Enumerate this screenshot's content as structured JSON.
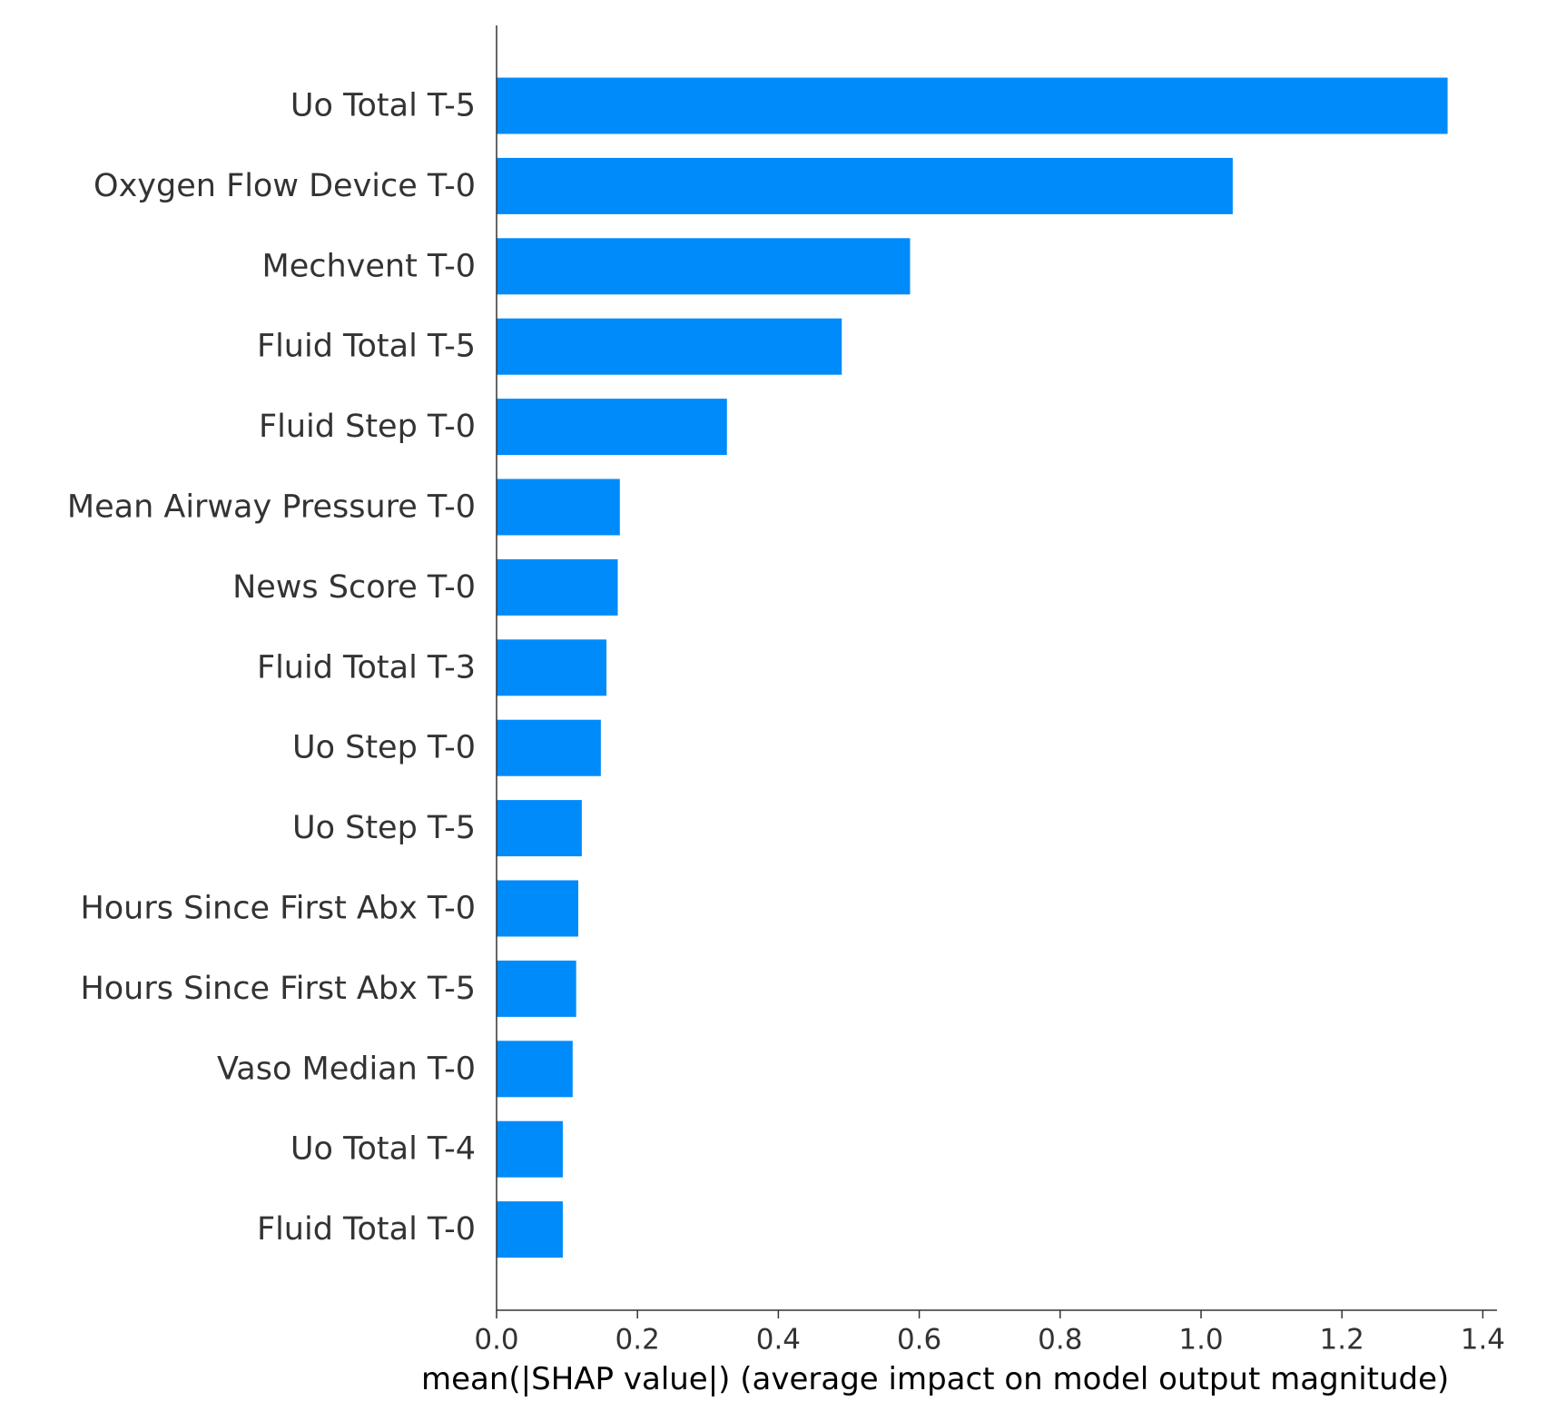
{
  "chart_data": {
    "type": "bar",
    "orientation": "horizontal",
    "title": "",
    "xlabel": "mean(|SHAP value|) (average impact on model output magnitude)",
    "ylabel": "",
    "xlim": [
      0,
      1.42
    ],
    "xticks": [
      0.0,
      0.2,
      0.4,
      0.6,
      0.8,
      1.0,
      1.2,
      1.4
    ],
    "xtick_labels": [
      "0.0",
      "0.2",
      "0.4",
      "0.6",
      "0.8",
      "1.0",
      "1.2",
      "1.4"
    ],
    "grid": false,
    "bar_color": "#008bfb",
    "categories": [
      "Uo Total T-5",
      "Oxygen Flow Device T-0",
      "Mechvent T-0",
      "Fluid Total T-5",
      "Fluid Step T-0",
      "Mean Airway Pressure T-0",
      "News Score T-0",
      "Fluid Total T-3",
      "Uo Step T-0",
      "Uo Step T-5",
      "Hours Since First Abx T-0",
      "Hours Since First Abx T-5",
      "Vaso Median T-0",
      "Uo Total T-4",
      "Fluid Total T-0"
    ],
    "values": [
      1.35,
      1.045,
      0.587,
      0.49,
      0.327,
      0.175,
      0.172,
      0.156,
      0.148,
      0.121,
      0.116,
      0.113,
      0.108,
      0.094,
      0.094
    ]
  }
}
